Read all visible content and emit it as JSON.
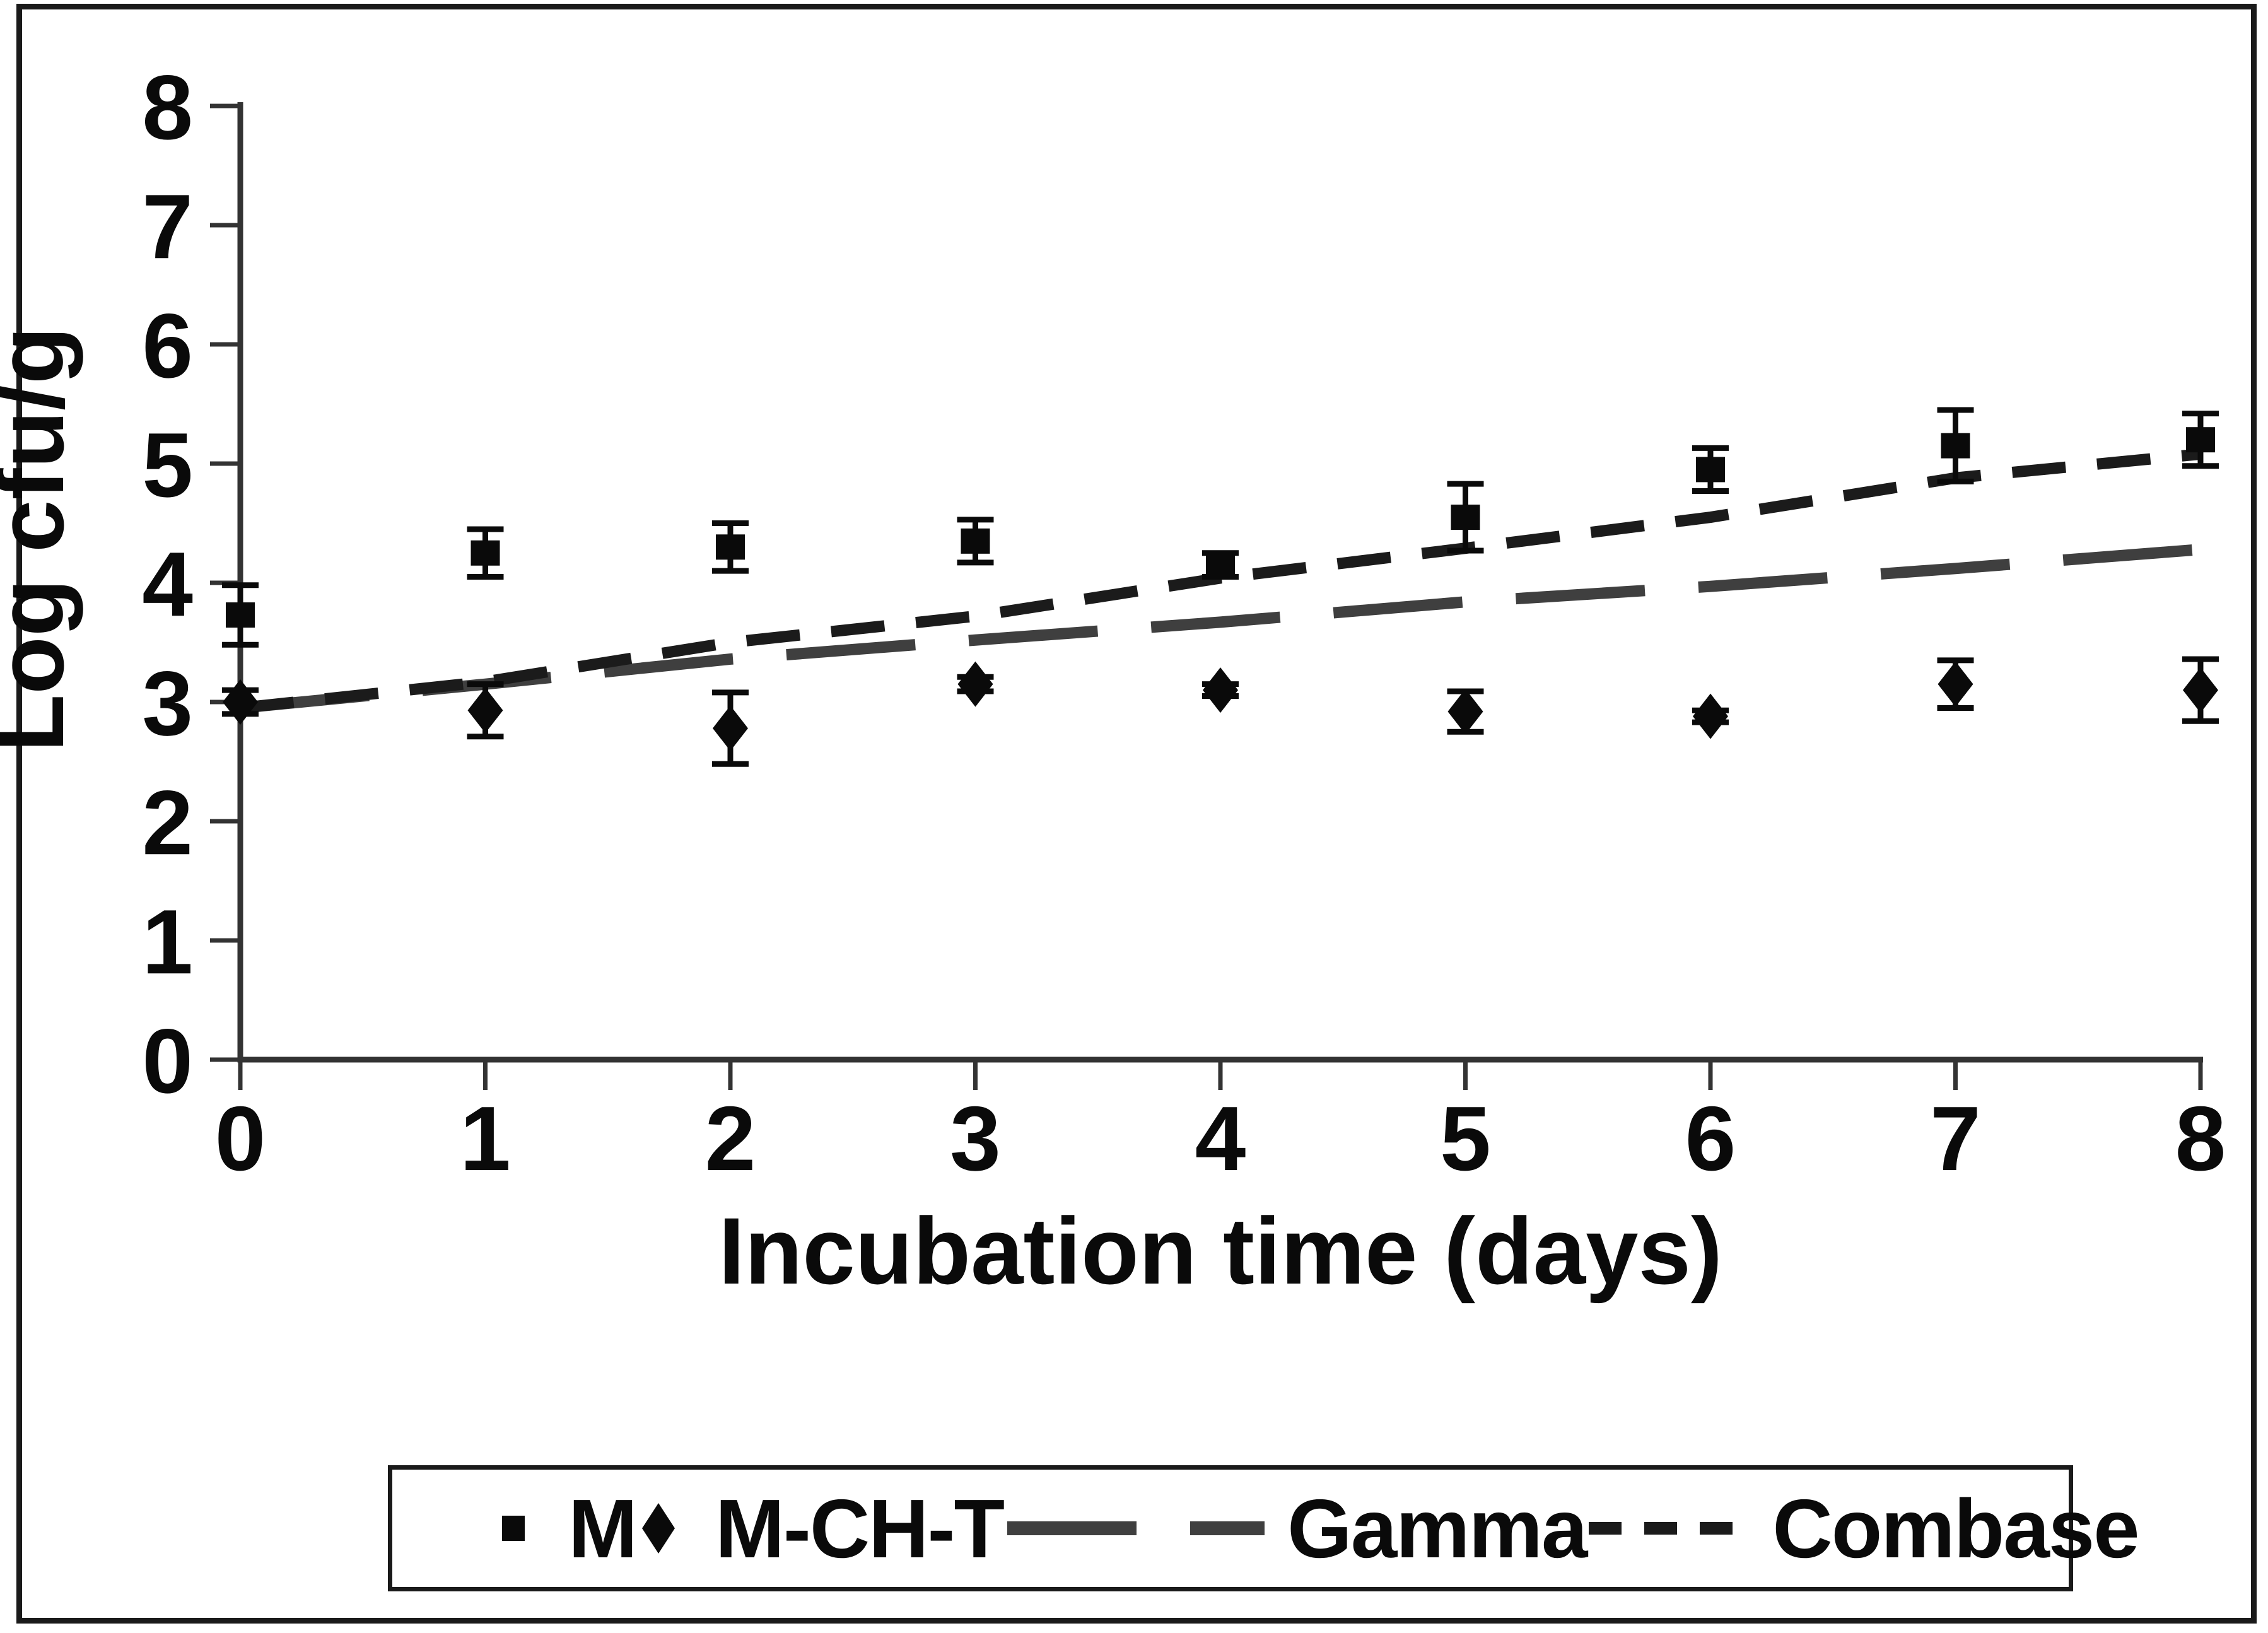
{
  "figure": {
    "type_hint": "microbial growth curve figure"
  },
  "colors": {
    "marker": "#0a0a0a",
    "gamma_line": "#3f3f3f",
    "combase_line": "#1b1b1b",
    "axis": "#333333",
    "text": "#0a0a0a"
  },
  "axes": {
    "ylabel": "Log cfu/g",
    "xlabel": "Incubation time (days)"
  },
  "legend": {
    "items": [
      {
        "label": "M",
        "marker": "square"
      },
      {
        "label": "M-CH-T",
        "marker": "diamond"
      },
      {
        "label": "Gamma",
        "marker": "long-dash"
      },
      {
        "label": "Combase",
        "marker": "short-dash"
      }
    ]
  },
  "chart_data": {
    "type": "scatter",
    "title": "",
    "xlabel": "Incubation time (days)",
    "ylabel": "Log cfu/g",
    "xlim": [
      0,
      8
    ],
    "ylim": [
      0,
      8
    ],
    "xticks": [
      0,
      1,
      2,
      3,
      4,
      5,
      6,
      7,
      8
    ],
    "yticks": [
      0,
      1,
      2,
      3,
      4,
      5,
      6,
      7,
      8
    ],
    "grid": false,
    "legend_position": "bottom",
    "x": [
      0,
      1,
      2,
      3,
      4,
      5,
      6,
      7,
      8
    ],
    "series": [
      {
        "name": "M",
        "type": "scatter",
        "marker": "square",
        "values": [
          3.73,
          4.25,
          4.3,
          4.35,
          4.15,
          4.55,
          4.95,
          5.15,
          5.2
        ],
        "errors": [
          0.25,
          0.2,
          0.2,
          0.18,
          0.1,
          0.28,
          0.18,
          0.3,
          0.22
        ]
      },
      {
        "name": "M-CH-T",
        "type": "scatter",
        "marker": "diamond",
        "values": [
          3.0,
          2.93,
          2.78,
          3.15,
          3.1,
          2.92,
          2.88,
          3.15,
          3.1
        ],
        "errors": [
          0.1,
          0.22,
          0.3,
          0.06,
          0.05,
          0.17,
          0.05,
          0.2,
          0.26
        ]
      },
      {
        "name": "Gamma",
        "type": "line",
        "dash": "long",
        "values": [
          2.95,
          3.15,
          3.36,
          3.52,
          3.67,
          3.84,
          3.97,
          4.12,
          4.28
        ]
      },
      {
        "name": "Combase",
        "type": "line",
        "dash": "short",
        "values": [
          2.95,
          3.17,
          3.5,
          3.72,
          4.04,
          4.29,
          4.55,
          4.88,
          5.08
        ]
      }
    ]
  }
}
